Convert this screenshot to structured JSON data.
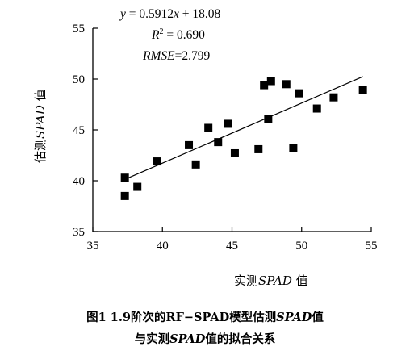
{
  "chart_data": {
    "type": "scatter",
    "xlim": [
      35,
      55
    ],
    "ylim": [
      35,
      55
    ],
    "xticks": [
      35,
      40,
      45,
      50,
      55
    ],
    "yticks": [
      35,
      40,
      45,
      50,
      55
    ],
    "xlabel_prefix": "实测",
    "xlabel_var": "SPAD",
    "xlabel_suffix": " 值",
    "ylabel_prefix": "估测",
    "ylabel_var": "SPAD",
    "ylabel_suffix": " 值",
    "marker": "filled-square",
    "marker_color": "#000000",
    "x": [
      37.3,
      37.3,
      38.2,
      39.6,
      41.9,
      42.4,
      43.3,
      44.0,
      44.7,
      45.2,
      46.9,
      47.3,
      47.6,
      47.8,
      48.9,
      49.4,
      49.8,
      51.1,
      52.3,
      54.4
    ],
    "y": [
      40.3,
      38.5,
      39.4,
      41.9,
      43.5,
      41.6,
      45.2,
      43.8,
      45.6,
      42.7,
      43.1,
      49.4,
      46.1,
      49.8,
      49.5,
      43.2,
      48.6,
      47.1,
      48.2,
      48.9
    ],
    "fit": {
      "slope": 0.5912,
      "intercept": 18.08,
      "x_range": [
        37.3,
        54.4
      ]
    },
    "annotations": {
      "equation": "y = 0.5912x + 18.08",
      "r2": "R² = 0.690",
      "rmse": "RMSE=2.799"
    }
  },
  "caption": {
    "line1_prefix": "图1  1.9阶次的RF−SPAD模型估测",
    "line1_var": "SPAD",
    "line1_suffix": "值",
    "line2_prefix": "与实测",
    "line2_var": "SPAD",
    "line2_suffix": "值的拟合关系"
  }
}
